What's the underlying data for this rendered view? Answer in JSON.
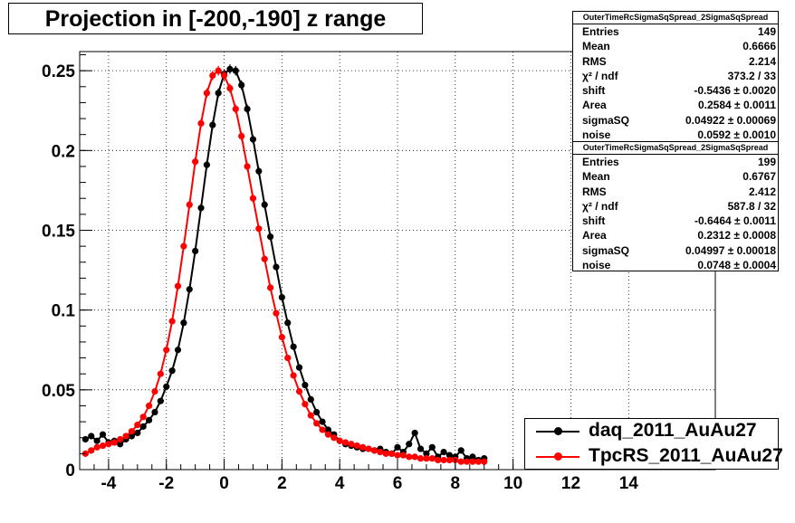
{
  "title": "Projection in [-200,-190] z range",
  "stats_boxes": [
    {
      "name": "OuterTimeRcSigmaSqSpread_2SigmaSqSpread",
      "rows": [
        {
          "label": "Entries",
          "value": "149"
        },
        {
          "label": "Mean",
          "value": "0.6666"
        },
        {
          "label": "RMS",
          "value": "2.214"
        },
        {
          "label": "χ² / ndf",
          "value": "373.2 / 33"
        },
        {
          "label": "shift",
          "value": "-0.5436 ± 0.0020"
        },
        {
          "label": "Area",
          "value": "0.2584 ± 0.0011"
        },
        {
          "label": "sigmaSQ",
          "value": "0.04922 ± 0.00069"
        },
        {
          "label": "noise",
          "value": "0.0592 ± 0.0010"
        }
      ]
    },
    {
      "name": "OuterTimeRcSigmaSqSpread_2SigmaSqSpread",
      "rows": [
        {
          "label": "Entries",
          "value": "199"
        },
        {
          "label": "Mean",
          "value": "0.6767"
        },
        {
          "label": "RMS",
          "value": "2.412"
        },
        {
          "label": "χ² / ndf",
          "value": "587.8 / 32"
        },
        {
          "label": "shift",
          "value": "-0.6464 ± 0.0011"
        },
        {
          "label": "Area",
          "value": "0.2312 ± 0.0008"
        },
        {
          "label": "sigmaSQ",
          "value": "0.04997 ± 0.00018"
        },
        {
          "label": "noise",
          "value": "0.0748 ± 0.0004"
        }
      ]
    }
  ],
  "chart_data": {
    "type": "scatter",
    "title": "Projection in [-200,-190] z range",
    "xlabel": "",
    "ylabel": "",
    "xlim": [
      -5,
      17
    ],
    "ylim": [
      0,
      0.262
    ],
    "x_ticks": [
      -4,
      -2,
      0,
      2,
      4,
      6,
      8,
      10,
      12,
      14
    ],
    "x_tick_labels": [
      "-4",
      "-2",
      "0",
      "2",
      "4",
      "6",
      "8",
      "10",
      "12",
      "14"
    ],
    "y_ticks": [
      0,
      0.05,
      0.1,
      0.15,
      0.2,
      0.25
    ],
    "y_tick_labels": [
      "0",
      "0.05",
      "0.1",
      "0.15",
      "0.2",
      "0.25"
    ],
    "grid": true,
    "legend_position": "bottom-right",
    "series": [
      {
        "name": "daq_2011_AuAu27",
        "color": "#000000",
        "x": [
          -4.8,
          -4.6,
          -4.4,
          -4.2,
          -4.0,
          -3.8,
          -3.6,
          -3.4,
          -3.2,
          -3.0,
          -2.8,
          -2.6,
          -2.4,
          -2.2,
          -2.0,
          -1.8,
          -1.6,
          -1.4,
          -1.2,
          -1.0,
          -0.8,
          -0.6,
          -0.4,
          -0.2,
          0.0,
          0.2,
          0.4,
          0.6,
          0.8,
          1.0,
          1.2,
          1.4,
          1.6,
          1.8,
          2.0,
          2.2,
          2.4,
          2.6,
          2.8,
          3.0,
          3.2,
          3.4,
          3.6,
          3.8,
          4.0,
          4.2,
          4.4,
          4.6,
          4.8,
          5.0,
          5.2,
          5.4,
          5.6,
          5.8,
          6.0,
          6.2,
          6.4,
          6.6,
          6.8,
          7.0,
          7.2,
          7.4,
          7.6,
          7.8,
          8.0,
          8.2,
          8.4,
          8.6,
          8.8,
          9.0
        ],
        "y": [
          0.019,
          0.021,
          0.018,
          0.022,
          0.017,
          0.018,
          0.016,
          0.019,
          0.021,
          0.023,
          0.027,
          0.031,
          0.036,
          0.043,
          0.052,
          0.062,
          0.075,
          0.092,
          0.113,
          0.137,
          0.164,
          0.191,
          0.216,
          0.236,
          0.248,
          0.251,
          0.25,
          0.241,
          0.226,
          0.207,
          0.187,
          0.166,
          0.146,
          0.127,
          0.108,
          0.092,
          0.077,
          0.064,
          0.053,
          0.044,
          0.036,
          0.03,
          0.025,
          0.022,
          0.018,
          0.016,
          0.015,
          0.014,
          0.013,
          0.013,
          0.012,
          0.013,
          0.011,
          0.01,
          0.014,
          0.011,
          0.016,
          0.023,
          0.013,
          0.01,
          0.014,
          0.008,
          0.011,
          0.009,
          0.008,
          0.012,
          0.007,
          0.008,
          0.006,
          0.007
        ],
        "fit": {
          "shift": -0.5436,
          "area": 0.2584,
          "sigmaSQ": 0.04922,
          "noise": 0.0592
        }
      },
      {
        "name": "TpcRS_2011_AuAu27",
        "color": "#ff0000",
        "x": [
          -4.8,
          -4.6,
          -4.4,
          -4.2,
          -4.0,
          -3.8,
          -3.6,
          -3.4,
          -3.2,
          -3.0,
          -2.8,
          -2.6,
          -2.4,
          -2.2,
          -2.0,
          -1.8,
          -1.6,
          -1.4,
          -1.2,
          -1.0,
          -0.8,
          -0.6,
          -0.4,
          -0.2,
          0.0,
          0.2,
          0.4,
          0.6,
          0.8,
          1.0,
          1.2,
          1.4,
          1.6,
          1.8,
          2.0,
          2.2,
          2.4,
          2.6,
          2.8,
          3.0,
          3.2,
          3.4,
          3.6,
          3.8,
          4.0,
          4.2,
          4.4,
          4.6,
          4.8,
          5.0,
          5.2,
          5.4,
          5.6,
          5.8,
          6.0,
          6.2,
          6.4,
          6.6,
          6.8,
          7.0,
          7.2,
          7.4,
          7.6,
          7.8,
          8.0,
          8.2,
          8.4,
          8.6,
          8.8,
          9.0
        ],
        "y": [
          0.01,
          0.012,
          0.014,
          0.015,
          0.016,
          0.017,
          0.019,
          0.021,
          0.024,
          0.028,
          0.033,
          0.04,
          0.049,
          0.06,
          0.075,
          0.093,
          0.115,
          0.14,
          0.166,
          0.193,
          0.217,
          0.236,
          0.247,
          0.25,
          0.247,
          0.239,
          0.226,
          0.209,
          0.19,
          0.17,
          0.151,
          0.132,
          0.114,
          0.098,
          0.083,
          0.07,
          0.059,
          0.049,
          0.041,
          0.034,
          0.029,
          0.025,
          0.022,
          0.02,
          0.018,
          0.017,
          0.016,
          0.015,
          0.014,
          0.013,
          0.012,
          0.011,
          0.01,
          0.01,
          0.009,
          0.009,
          0.008,
          0.008,
          0.007,
          0.007,
          0.007,
          0.006,
          0.006,
          0.006,
          0.006,
          0.005,
          0.005,
          0.005,
          0.005,
          0.005
        ],
        "fit": {
          "shift": -0.6464,
          "area": 0.2312,
          "sigmaSQ": 0.04997,
          "noise": 0.0748
        }
      }
    ]
  }
}
